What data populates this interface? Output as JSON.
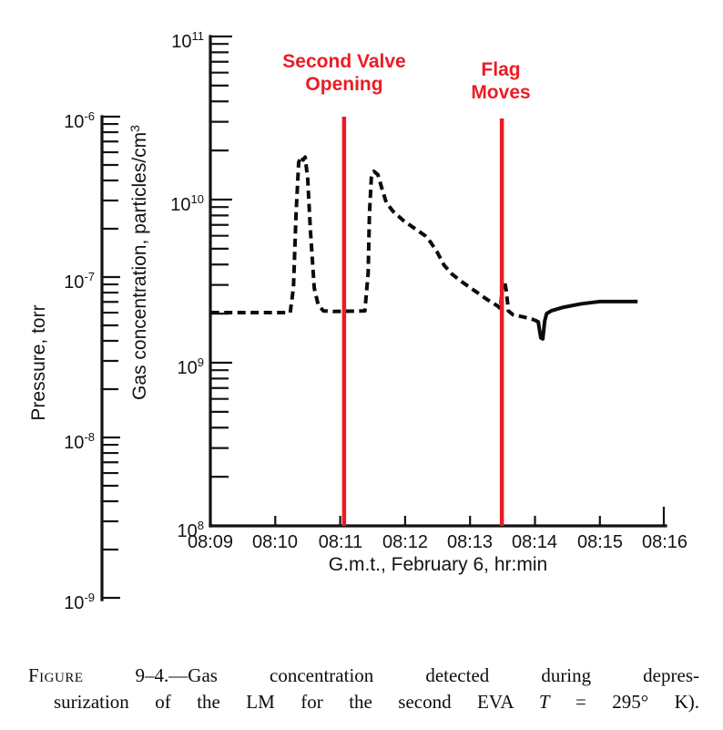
{
  "axes": {
    "gas": {
      "label_main": "Gas concentration, particles/cm",
      "label_sup": "3",
      "ticks": [
        {
          "base": "10",
          "exp": "11"
        },
        {
          "base": "10",
          "exp": "10"
        },
        {
          "base": "10",
          "exp": "9"
        },
        {
          "base": "10",
          "exp": "8"
        }
      ]
    },
    "pressure": {
      "label": "Pressure, torr",
      "ticks": [
        {
          "base": "10",
          "exp": "-6"
        },
        {
          "base": "10",
          "exp": "-7"
        },
        {
          "base": "10",
          "exp": "-8"
        },
        {
          "base": "10",
          "exp": "-9"
        }
      ]
    },
    "x": {
      "label": "G.m.t., February 6, hr:min",
      "ticks": [
        "08:09",
        "08:10",
        "08:11",
        "08:12",
        "08:13",
        "08:14",
        "08:15",
        "08:16"
      ]
    }
  },
  "annotations": {
    "color": "#ea1c25",
    "second_valve": {
      "line1": "Second Valve",
      "line2": "Opening",
      "time": "08:11"
    },
    "flag": {
      "line1": "Flag",
      "line2": "Moves",
      "time": "08:13.5"
    }
  },
  "caption": {
    "label": "Figure",
    "line1_rest": " 9–4.—Gas concentration detected during depres-",
    "line2_pre": "surization of the LM for the second EVA ",
    "line2_var": "T",
    "line2_post": " = 295° K)."
  },
  "chart_data": {
    "type": "line",
    "title": "",
    "xlabel": "G.m.t., February 6, hr:min",
    "grid": false,
    "legend": "none",
    "x_axis": {
      "ticks": [
        "08:09",
        "08:10",
        "08:11",
        "08:12",
        "08:13",
        "08:14",
        "08:15",
        "08:16"
      ],
      "unit": "hr:min GMT, February 6"
    },
    "y_axis_gas": {
      "label": "Gas concentration, particles/cm3",
      "scale": "log",
      "range": [
        100000000.0,
        100000000000.0
      ]
    },
    "y_axis_pressure": {
      "label": "Pressure, torr",
      "scale": "log",
      "range": [
        1e-09,
        1e-06
      ]
    },
    "series": [
      {
        "name": "Gas concentration",
        "color": "#0c0c0c",
        "line_style": "dashed then solid after 08:14",
        "solid_from_index": 41,
        "points": [
          [
            9.01,
            2030000000.0
          ],
          [
            10.23,
            2030000000.0
          ],
          [
            10.28,
            2900000000.0
          ],
          [
            10.32,
            8100000000.0
          ],
          [
            10.36,
            16900000000.0
          ],
          [
            10.4,
            18400000000.0
          ],
          [
            10.43,
            17500000000.0
          ],
          [
            10.46,
            18200000000.0
          ],
          [
            10.5,
            13500000000.0
          ],
          [
            10.54,
            6600000000.0
          ],
          [
            10.6,
            2870000000.0
          ],
          [
            10.66,
            2270000000.0
          ],
          [
            10.74,
            2080000000.0
          ],
          [
            10.89,
            2060000000.0
          ],
          [
            11.38,
            2080000000.0
          ],
          [
            11.43,
            3530000000.0
          ],
          [
            11.45,
            8100000000.0
          ],
          [
            11.48,
            13600000000.0
          ],
          [
            11.52,
            14900000000.0
          ],
          [
            11.58,
            14200000000.0
          ],
          [
            11.64,
            11800000000.0
          ],
          [
            11.71,
            9600000000.0
          ],
          [
            11.81,
            8500000000.0
          ],
          [
            11.97,
            7450000000.0
          ],
          [
            12.16,
            6600000000.0
          ],
          [
            12.31,
            6000000000.0
          ],
          [
            12.39,
            5500000000.0
          ],
          [
            12.49,
            4800000000.0
          ],
          [
            12.6,
            3960000000.0
          ],
          [
            12.72,
            3500000000.0
          ],
          [
            12.87,
            3140000000.0
          ],
          [
            13.05,
            2800000000.0
          ],
          [
            13.25,
            2460000000.0
          ],
          [
            13.43,
            2220000000.0
          ],
          [
            13.47,
            2140000000.0
          ],
          [
            13.5,
            3020000000.0
          ],
          [
            13.53,
            3180000000.0
          ],
          [
            13.56,
            2740000000.0
          ],
          [
            13.59,
            2080000000.0
          ],
          [
            13.66,
            1970000000.0
          ],
          [
            13.84,
            1900000000.0
          ],
          [
            13.99,
            1830000000.0
          ],
          [
            14.05,
            1780000000.0
          ],
          [
            14.09,
            1420000000.0
          ],
          [
            14.12,
            1400000000.0
          ],
          [
            14.15,
            1800000000.0
          ],
          [
            14.18,
            2000000000.0
          ],
          [
            14.25,
            2080000000.0
          ],
          [
            14.44,
            2190000000.0
          ],
          [
            14.72,
            2300000000.0
          ],
          [
            15.0,
            2370000000.0
          ],
          [
            15.58,
            2370000000.0
          ]
        ]
      }
    ],
    "events": [
      {
        "label": "Second Valve Opening",
        "time": "08:11",
        "time_min_after_0800": 11.06
      },
      {
        "label": "Flag Moves",
        "time": "08:13.5",
        "time_min_after_0800": 13.49
      }
    ]
  }
}
